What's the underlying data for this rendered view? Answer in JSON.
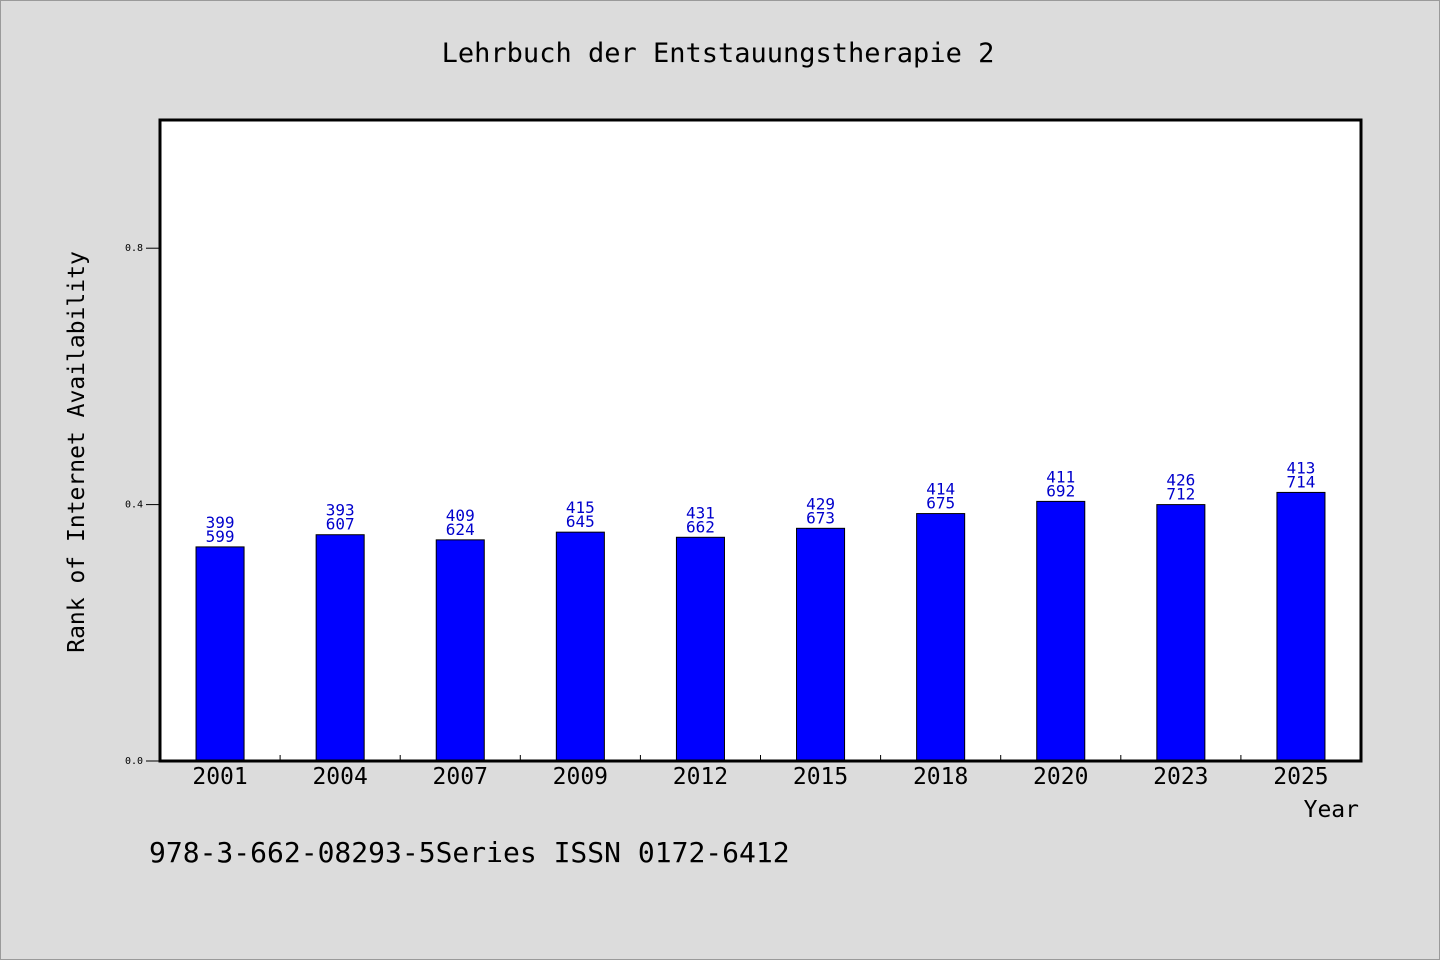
{
  "chart_data": {
    "type": "bar",
    "title": "Lehrbuch der Entstauungstherapie 2",
    "xlabel": "Year",
    "ylabel": "Rank of Internet Availability",
    "categories": [
      "2001",
      "2004",
      "2007",
      "2009",
      "2012",
      "2015",
      "2018",
      "2020",
      "2023",
      "2025"
    ],
    "values": [
      0.334,
      0.353,
      0.345,
      0.357,
      0.349,
      0.363,
      0.386,
      0.405,
      0.4,
      0.419
    ],
    "bar_labels": [
      [
        "399",
        "599"
      ],
      [
        "393",
        "607"
      ],
      [
        "409",
        "624"
      ],
      [
        "415",
        "645"
      ],
      [
        "431",
        "662"
      ],
      [
        "429",
        "673"
      ],
      [
        "414",
        "675"
      ],
      [
        "411",
        "692"
      ],
      [
        "426",
        "712"
      ],
      [
        "413",
        "714"
      ]
    ],
    "yticks": [
      "0.0",
      "0.4",
      "0.8"
    ],
    "ytick_values": [
      0,
      0.4,
      0.8
    ],
    "ylim": [
      0,
      1.0
    ],
    "grid": false,
    "colors": {
      "bar": "#0000ff",
      "bar_label": "#0000cc",
      "background": "#dcdcdc",
      "plot": "#ffffff"
    }
  },
  "footer": "978-3-662-08293-5Series ISSN 0172-6412"
}
